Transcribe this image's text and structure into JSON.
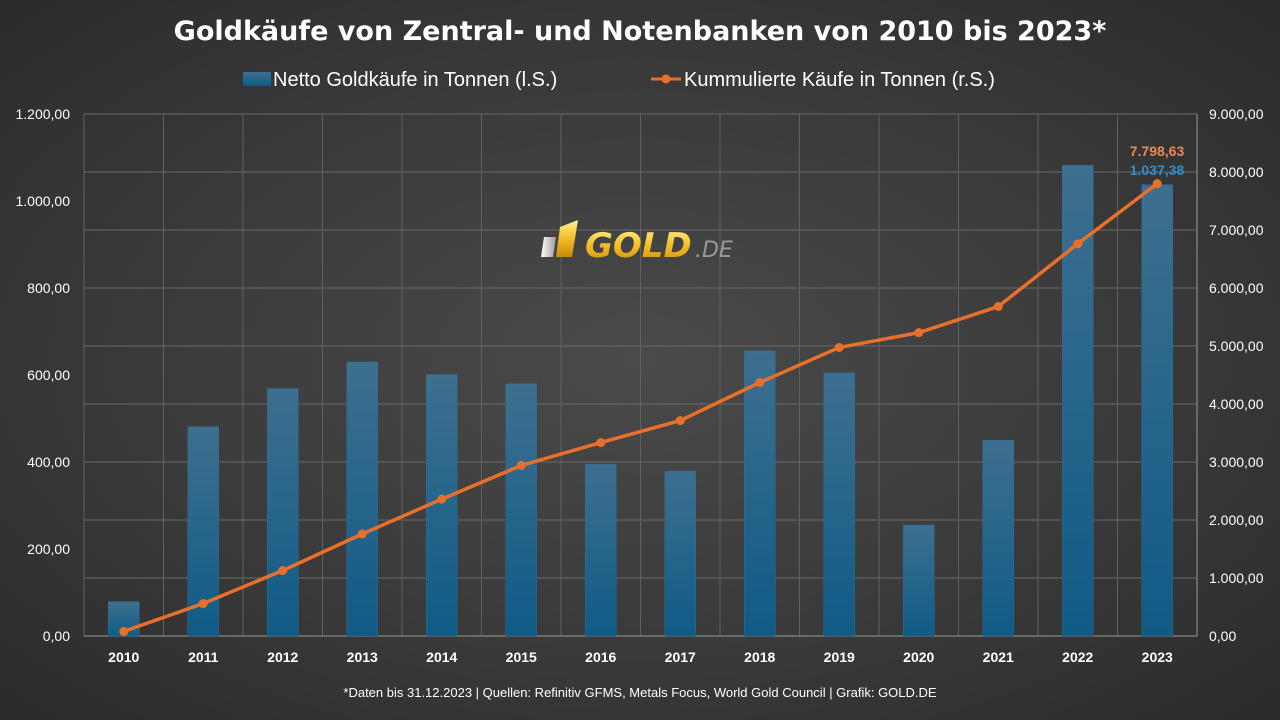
{
  "chart_data": {
    "type": "bar+line",
    "title": "Goldkäufe von Zentral- und Notenbanken von 2010 bis 2023*",
    "categories": [
      "2010",
      "2011",
      "2012",
      "2013",
      "2014",
      "2015",
      "2016",
      "2017",
      "2018",
      "2019",
      "2020",
      "2021",
      "2022",
      "2023"
    ],
    "series": [
      {
        "name": "Netto Goldkäufe in Tonnen (l.S.)",
        "type": "bar",
        "axis": "left",
        "color": "#1f6f9c",
        "values": [
          79,
          481,
          569,
          630,
          601,
          580,
          395,
          379,
          656,
          605,
          255,
          450,
          1082,
          1037.38
        ]
      },
      {
        "name": "Kummulierte Käufe in Tonnen (r.S.)",
        "type": "line",
        "axis": "right",
        "color": "#e8702a",
        "values": [
          79,
          560,
          1129,
          1759,
          2360,
          2940,
          3335,
          3714,
          4370,
          4975,
          5230,
          5680,
          6762,
          7798.63
        ]
      }
    ],
    "y_left": {
      "min": 0,
      "max": 1200,
      "step": 200,
      "tick_labels": [
        "0,00",
        "200,00",
        "400,00",
        "600,00",
        "800,00",
        "1.000,00",
        "1.200,00"
      ]
    },
    "y_right": {
      "min": 0,
      "max": 9000,
      "step": 1000,
      "tick_labels": [
        "0,00",
        "1.000,00",
        "2.000,00",
        "3.000,00",
        "4.000,00",
        "5.000,00",
        "6.000,00",
        "7.000,00",
        "8.000,00",
        "9.000,00"
      ]
    },
    "data_labels": {
      "line_last": "7.798,63",
      "bar_last": "1.037,38"
    },
    "grid": true,
    "legend_position": "top-center",
    "footnote": "*Daten bis 31.12.2023 | Quellen: Refinitiv GFMS, Metals Focus, World Gold Council | Grafik: GOLD.DE"
  },
  "watermark": {
    "main": "GOLD",
    "suffix": ".DE"
  }
}
